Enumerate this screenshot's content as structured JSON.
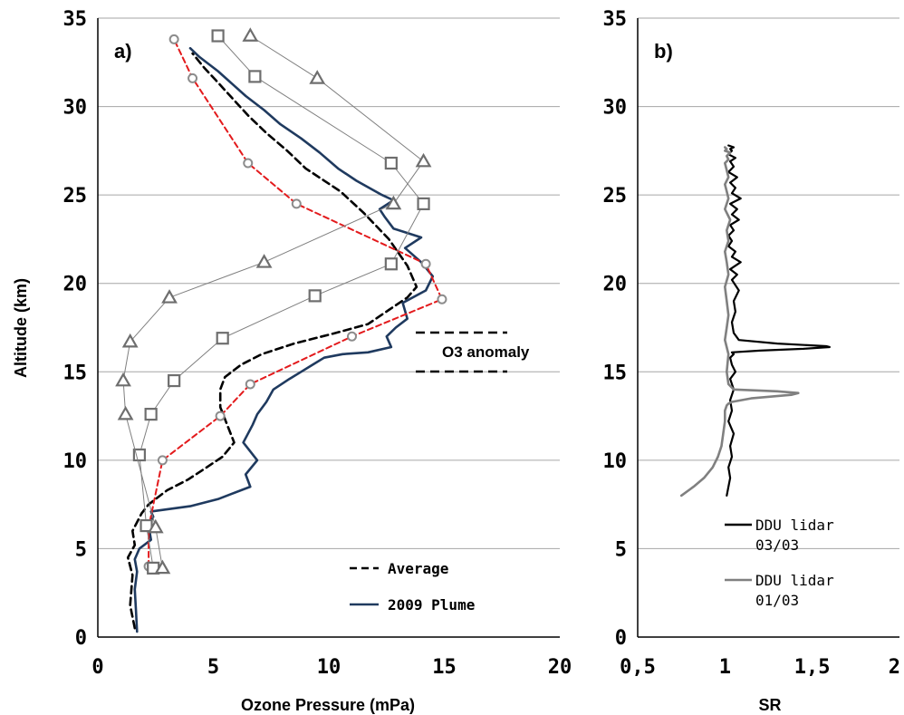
{
  "chart_data": [
    {
      "panel_label": "a)",
      "type": "line",
      "xlabel": "Ozone Pressure (mPa)",
      "ylabel": "Altitude (km)",
      "xlim": [
        0,
        20
      ],
      "ylim": [
        0,
        35
      ],
      "x_ticks": [
        "0",
        "5",
        "10",
        "15",
        "20"
      ],
      "y_ticks": [
        "0",
        "5",
        "10",
        "15",
        "20",
        "25",
        "30",
        "35"
      ],
      "grid": "horizontal",
      "annotation": "O3 anomaly",
      "annotation_band": [
        15,
        17.2
      ],
      "legend": [
        {
          "label": "Average",
          "style": "dashed",
          "color": "#000000"
        },
        {
          "label": "2009 Plume",
          "style": "solid",
          "color": "#1f3a5f"
        }
      ],
      "series": [
        {
          "name": "Average",
          "style": "dashed",
          "color": "#000000",
          "width": 2.6,
          "x": [
            1.6,
            1.4,
            1.5,
            1.3,
            1.6,
            1.5,
            1.9,
            2.2,
            3.0,
            3.9,
            4.6,
            5.4,
            5.9,
            5.6,
            5.3,
            5.3,
            5.5,
            6.2,
            7.1,
            8.5,
            10.3,
            11.7,
            12.6,
            13.4,
            13.8,
            13.4,
            12.6,
            11.5,
            10.5,
            9.0,
            8.2,
            7.3,
            6.5,
            5.8,
            5.1,
            4.6,
            4.1
          ],
          "y": [
            0.5,
            1.8,
            3.5,
            4.5,
            5.2,
            6.0,
            7.0,
            7.5,
            8.3,
            8.9,
            9.5,
            10.2,
            11.0,
            12.0,
            13.0,
            14.0,
            14.7,
            15.4,
            16.0,
            16.6,
            17.2,
            17.7,
            18.5,
            19.2,
            19.8,
            21.0,
            22.5,
            24.0,
            25.2,
            26.5,
            27.5,
            28.5,
            29.5,
            30.5,
            31.5,
            32.2,
            33.0
          ]
        },
        {
          "name": "2009 Plume",
          "style": "solid",
          "color": "#1f3a5f",
          "width": 2.6,
          "x": [
            1.7,
            1.65,
            1.6,
            1.7,
            1.6,
            1.8,
            2.3,
            2.2,
            2.4,
            2.3,
            4.0,
            5.2,
            6.6,
            6.4,
            6.9,
            6.3,
            6.7,
            6.9,
            7.3,
            7.6,
            8.3,
            8.8,
            9.3,
            9.8,
            10.6,
            11.7,
            12.7,
            12.5,
            12.9,
            13.4,
            13.2,
            14.2,
            14.5,
            14.0,
            13.3,
            14.0,
            12.8,
            12.4,
            12.2,
            12.8,
            12.3,
            11.2,
            10.4,
            9.6,
            8.8,
            7.9,
            7.2,
            6.4,
            5.8,
            5.2,
            4.4,
            4.0
          ],
          "y": [
            0.3,
            1.5,
            2.7,
            3.7,
            4.4,
            5.0,
            5.5,
            6.3,
            6.8,
            7.1,
            7.4,
            7.8,
            8.5,
            9.2,
            10.0,
            11.0,
            12.0,
            12.6,
            13.3,
            14.0,
            14.6,
            15.0,
            15.4,
            15.8,
            16.0,
            16.1,
            16.4,
            17.0,
            17.5,
            18.0,
            18.9,
            19.6,
            20.4,
            21.2,
            22.0,
            22.6,
            23.1,
            23.8,
            24.2,
            24.7,
            25.0,
            25.8,
            26.5,
            27.4,
            28.2,
            29.0,
            29.8,
            30.6,
            31.3,
            32.0,
            32.8,
            33.3
          ]
        },
        {
          "name": "",
          "style": "dashed-markers",
          "color": "#e31a1c",
          "marker": "circle",
          "width": 2,
          "x": [
            2.2,
            2.2,
            2.8,
            5.3,
            6.6,
            11.0,
            14.9,
            14.2,
            8.6,
            6.5,
            4.1,
            3.3
          ],
          "y": [
            4.0,
            6.2,
            10.0,
            12.5,
            14.3,
            17.0,
            19.1,
            21.1,
            24.5,
            26.8,
            31.6,
            33.8
          ]
        },
        {
          "name": "",
          "style": "thin-markers",
          "color": "#7f7f7f",
          "marker": "square",
          "width": 1,
          "x": [
            2.4,
            2.1,
            1.8,
            2.3,
            3.3,
            5.4,
            9.4,
            12.7,
            14.1,
            12.7,
            6.8,
            5.2
          ],
          "y": [
            3.9,
            6.3,
            10.3,
            12.6,
            14.5,
            16.9,
            19.3,
            21.1,
            24.5,
            26.8,
            31.7,
            34.0
          ]
        },
        {
          "name": "",
          "style": "thin-markers",
          "color": "#7f7f7f",
          "marker": "triangle",
          "width": 1,
          "x": [
            2.8,
            2.5,
            1.2,
            1.1,
            1.4,
            3.1,
            7.2,
            12.8,
            14.1,
            9.5,
            6.6
          ],
          "y": [
            3.9,
            6.2,
            12.6,
            14.5,
            16.7,
            19.2,
            21.2,
            24.5,
            26.9,
            31.6,
            34.0
          ]
        }
      ]
    },
    {
      "panel_label": "b)",
      "type": "line",
      "xlabel": "SR",
      "ylabel": "",
      "xlim": [
        0.5,
        2
      ],
      "ylim": [
        0,
        35
      ],
      "x_ticks": [
        "0,5",
        "1",
        "1,5",
        "2"
      ],
      "y_ticks": [
        "0",
        "5",
        "10",
        "15",
        "20",
        "25",
        "30",
        "35"
      ],
      "grid": "horizontal",
      "legend": [
        {
          "label": "DDU lidar 03/03",
          "color": "#000000"
        },
        {
          "label": "DDU lidar 01/03",
          "color": "#808080"
        }
      ],
      "series": [
        {
          "name": "DDU lidar 03/03",
          "color": "#000000",
          "width": 2.2,
          "x": [
            1.01,
            1.02,
            1.03,
            1.02,
            1.04,
            1.03,
            1.05,
            1.02,
            1.04,
            1.03,
            1.05,
            1.03,
            1.06,
            1.04,
            1.03,
            1.05,
            1.04,
            1.2,
            1.45,
            1.6,
            1.58,
            1.3,
            1.08,
            1.05,
            1.04,
            1.06,
            1.05,
            1.08,
            1.04,
            1.07,
            1.03,
            1.09,
            1.04,
            1.06,
            1.02,
            1.04,
            1.02,
            1.05,
            1.03,
            1.08,
            1.04,
            1.07,
            1.03,
            1.09,
            1.04,
            1.06,
            1.03,
            1.07,
            1.02,
            1.05,
            1.03,
            1.06,
            1.02,
            1.04,
            1.03,
            1.05,
            1.02
          ],
          "y": [
            8.0,
            8.5,
            9.0,
            9.6,
            10.2,
            10.8,
            11.5,
            12.2,
            12.8,
            13.4,
            14.0,
            14.6,
            15.0,
            15.4,
            15.8,
            16.0,
            16.1,
            16.2,
            16.3,
            16.4,
            16.45,
            16.6,
            16.8,
            17.2,
            17.8,
            18.4,
            19.0,
            19.6,
            20.2,
            20.5,
            20.8,
            21.2,
            21.5,
            21.8,
            22.1,
            22.4,
            22.7,
            23.0,
            23.3,
            23.6,
            23.9,
            24.2,
            24.5,
            24.8,
            25.1,
            25.4,
            25.7,
            26.0,
            26.3,
            26.6,
            26.9,
            27.1,
            27.3,
            27.5,
            27.6,
            27.7,
            27.8
          ]
        },
        {
          "name": "DDU lidar 01/03",
          "color": "#808080",
          "width": 2.6,
          "x": [
            0.75,
            0.82,
            0.88,
            0.93,
            0.96,
            0.98,
            0.99,
            1.0,
            1.0,
            1.01,
            1.02,
            1.04,
            1.15,
            1.38,
            1.42,
            1.3,
            1.05,
            1.02,
            1.01,
            1.02,
            1.0,
            1.01,
            1.02,
            1.01,
            1.0,
            1.02,
            1.01,
            1.0,
            1.02,
            1.01,
            1.03,
            1.0,
            1.02,
            1.01,
            1.0,
            1.02,
            1.01,
            1.0,
            1.02,
            1.01,
            1.03,
            1.0,
            1.01,
            1.0
          ],
          "y": [
            8.0,
            8.5,
            9.0,
            9.6,
            10.2,
            10.8,
            11.5,
            12.2,
            12.8,
            13.1,
            13.2,
            13.3,
            13.5,
            13.7,
            13.8,
            13.9,
            14.0,
            14.3,
            15.0,
            16.0,
            16.8,
            17.5,
            18.2,
            19.0,
            19.8,
            20.5,
            21.2,
            21.8,
            22.4,
            23.0,
            23.6,
            24.2,
            24.8,
            25.2,
            25.6,
            26.0,
            26.4,
            26.8,
            27.0,
            27.2,
            27.4,
            27.5,
            27.6,
            27.7
          ]
        }
      ]
    }
  ]
}
